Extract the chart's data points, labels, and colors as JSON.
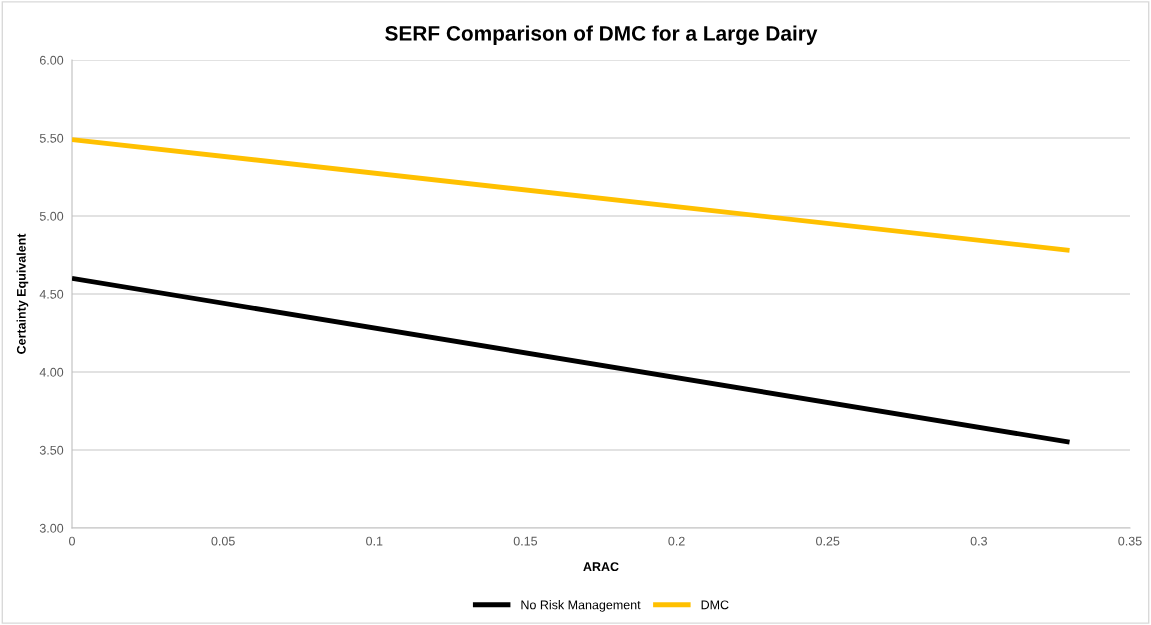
{
  "chart_data": {
    "type": "line",
    "title": "SERF Comparison of DMC for a Large Dairy",
    "xlabel": "ARAC",
    "ylabel": "Certainty Equivalent",
    "x": [
      0,
      0.33
    ],
    "series": [
      {
        "name": "No Risk Management",
        "color": "#000000",
        "values": [
          4.6,
          3.55
        ]
      },
      {
        "name": "DMC",
        "color": "#ffc000",
        "values": [
          5.49,
          4.78
        ]
      }
    ],
    "xlim": [
      0,
      0.35
    ],
    "xticks": [
      0,
      0.05,
      0.1,
      0.15,
      0.2,
      0.25,
      0.3,
      0.35
    ],
    "ylim": [
      3.0,
      6.0
    ],
    "yticks": [
      {
        "value": 3.0,
        "label": "3.00"
      },
      {
        "value": 3.5,
        "label": "3.50"
      },
      {
        "value": 4.0,
        "label": "4.00"
      },
      {
        "value": 4.5,
        "label": "4.50"
      },
      {
        "value": 5.0,
        "label": "5.00"
      },
      {
        "value": 5.5,
        "label": "5.50"
      },
      {
        "value": 6.0,
        "label": "6.00"
      }
    ],
    "grid": "y",
    "legend": "bottom",
    "marker": "none",
    "line_style": "solid"
  }
}
